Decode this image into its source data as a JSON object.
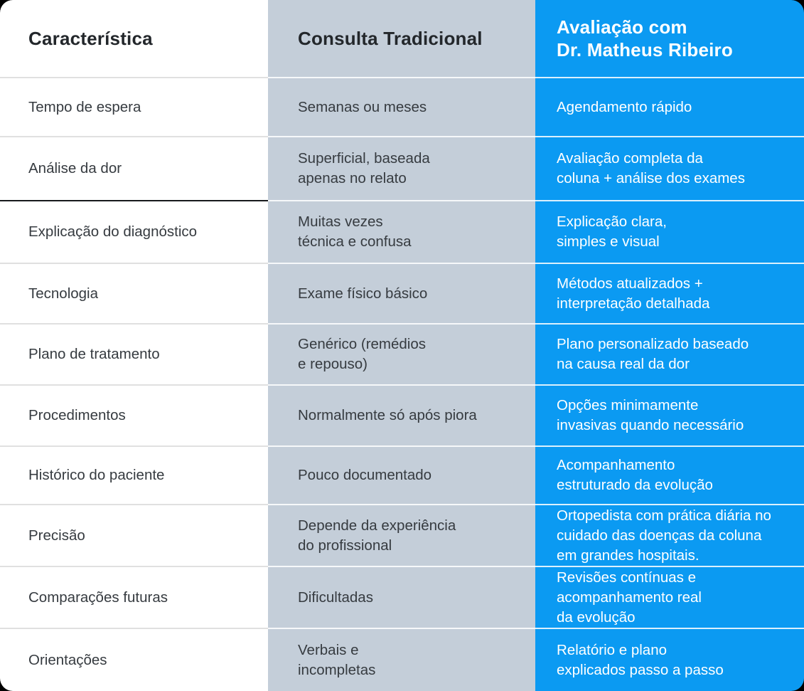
{
  "table": {
    "columns": [
      {
        "key": "caracteristica",
        "header": "Característica",
        "rows": [
          "Tempo de espera",
          "Análise da dor",
          "Explicação do diagnóstico",
          "Tecnologia",
          "Plano de tratamento",
          "Procedimentos",
          "Histórico do paciente",
          "Precisão",
          "Comparações futuras",
          "Orientações"
        ]
      },
      {
        "key": "consulta-tradicional",
        "header": "Consulta Tradicional",
        "rows": [
          "Semanas ou meses",
          "Superficial, baseada\napenas no relato",
          "Muitas vezes\ntécnica e confusa",
          "Exame físico básico",
          "Genérico (remédios\ne repouso)",
          "Normalmente só após piora",
          "Pouco documentado",
          "Depende da experiência\ndo profissional",
          "Dificultadas",
          "Verbais e\nincompletas"
        ]
      },
      {
        "key": "avaliacao-dr-matheus",
        "header": "Avaliação com\nDr. Matheus Ribeiro",
        "rows": [
          "Agendamento rápido",
          "Avaliação completa da\ncoluna + análise dos exames",
          "Explicação clara,\nsimples e visual",
          "Métodos atualizados +\ninterpretação detalhada",
          "Plano personalizado baseado\nna causa real da dor",
          "Opções minimamente\ninvasivas quando necessário",
          "Acompanhamento\nestruturado da evolução",
          "Ortopedista com prática diária no\ncuidado das doenças da coluna\nem grandes hospitais.",
          "Revisões contínuas e\nacompanhamento real\nda evolução",
          "Relatório e plano\nexplicados passo a passo"
        ]
      }
    ],
    "colors": {
      "accent_blue": "#0b9af2",
      "column_gray": "#c4ced9",
      "text_dark": "#363b40",
      "header_text_dark": "#23272b",
      "separator_light": "#e0e0e0",
      "separator_dark": "#17191c",
      "separator_on_color": "rgba(255,255,255,0.85)"
    }
  }
}
